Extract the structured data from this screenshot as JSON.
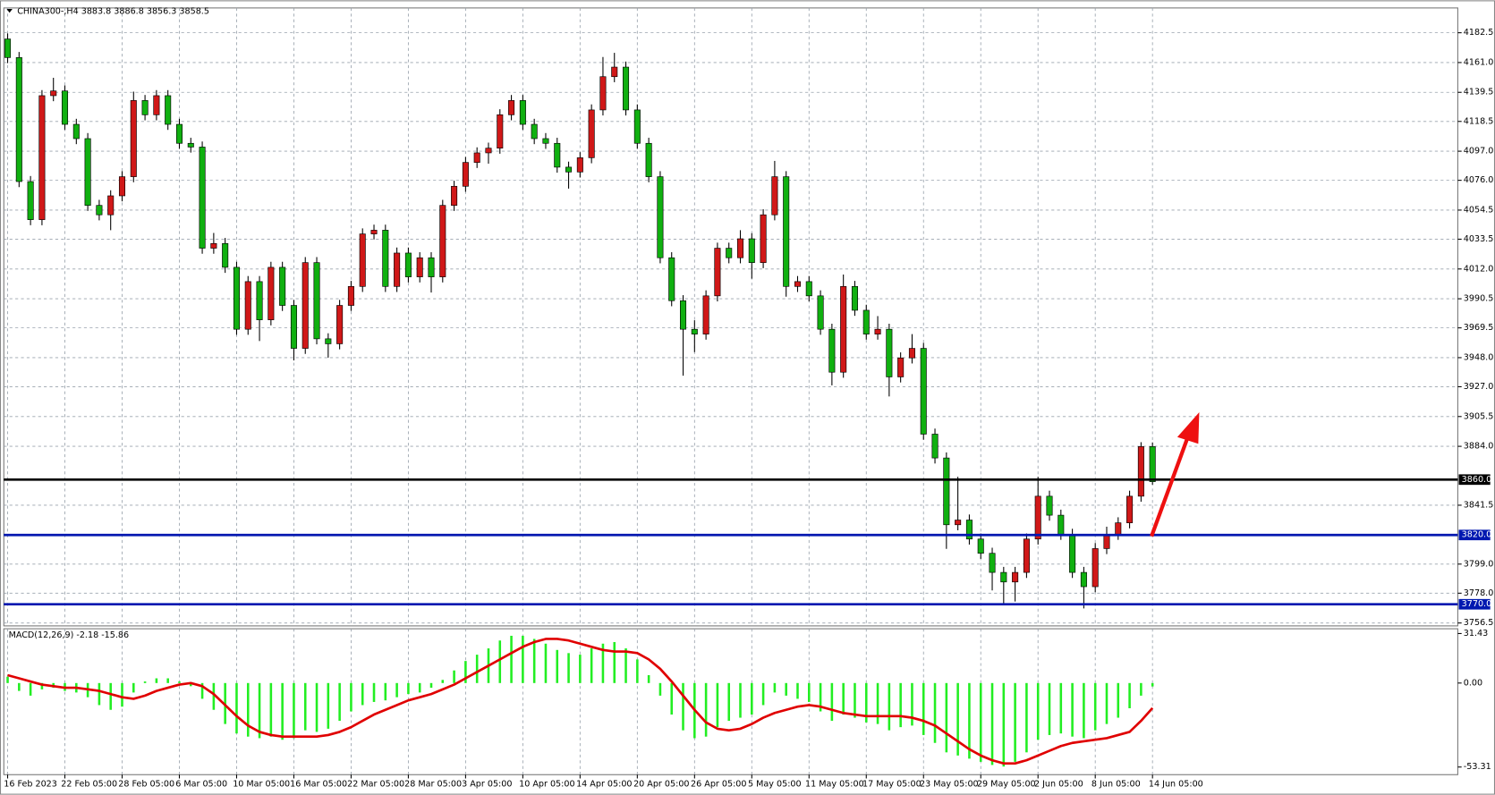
{
  "chart_data": [
    {
      "type": "candlestick",
      "title": "CHINA300-,H4  3883.8 3886.8 3856.3 3858.5",
      "up_color": "#d01818",
      "down_color": "#10b010",
      "grid": true,
      "ylim": [
        3754.4,
        4200.4
      ],
      "yticks": [
        4182.5,
        {
          "value": 4161,
          "label": "4161.0"
        },
        4139.5,
        4118.5,
        {
          "value": 4097,
          "label": "4097.0"
        },
        {
          "value": 4076,
          "label": "4076.0"
        },
        4054.5,
        4033.5,
        {
          "value": 4012,
          "label": "4012.0"
        },
        3990.5,
        3969.5,
        {
          "value": 3948,
          "label": "3948.0"
        },
        {
          "value": 3927,
          "label": "3927.0"
        },
        3905.5,
        {
          "value": 3884,
          "label": "3884.0"
        },
        3841.5,
        {
          "value": 3799,
          "label": "3799.0"
        },
        {
          "value": 3778,
          "label": "3778.0"
        },
        3756.5
      ],
      "levels": [
        {
          "value": 3860,
          "label": "3860.0",
          "color": "#000000"
        },
        {
          "value": 3820,
          "label": "3820.0",
          "color": "#0018b0"
        },
        {
          "value": 3770,
          "label": "3770.0",
          "color": "#0018b0"
        }
      ],
      "categories": [
        "16 Feb 2023",
        null,
        null,
        null,
        null,
        "22 Feb 05:00",
        null,
        null,
        null,
        null,
        "28 Feb 05:00",
        null,
        null,
        null,
        null,
        "6 Mar 05:00",
        null,
        null,
        null,
        null,
        "10 Mar 05:00",
        null,
        null,
        null,
        null,
        "16 Mar 05:00",
        null,
        null,
        null,
        null,
        "22 Mar 05:00",
        null,
        null,
        null,
        null,
        "28 Mar 05:00",
        null,
        null,
        null,
        null,
        "3 Apr 05:00",
        null,
        null,
        null,
        null,
        "10 Apr 05:00",
        null,
        null,
        null,
        null,
        "14 Apr 05:00",
        null,
        null,
        null,
        null,
        "20 Apr 05:00",
        null,
        null,
        null,
        null,
        "26 Apr 05:00",
        null,
        null,
        null,
        null,
        "5 May 05:00",
        null,
        null,
        null,
        null,
        "11 May 05:00",
        null,
        null,
        null,
        null,
        "17 May 05:00",
        null,
        null,
        null,
        null,
        "23 May 05:00",
        null,
        null,
        null,
        null,
        "29 May 05:00",
        null,
        null,
        null,
        null,
        "2 Jun 05:00",
        null,
        null,
        null,
        null,
        "8 Jun 05:00",
        null,
        null,
        null,
        null,
        "14 Jun 05:00"
      ],
      "candles": [
        [
          4178.0,
          4182.0,
          4160.6,
          4164.6
        ],
        [
          4164.6,
          4168.6,
          4071.1,
          4075.1
        ],
        [
          4075.1,
          4079.1,
          4043.6,
          4047.6
        ],
        [
          4047.6,
          4141.1,
          4043.6,
          4137.1
        ],
        [
          4137.1,
          4150.0,
          4133.1,
          4140.5
        ],
        [
          4140.5,
          4144.5,
          4112.4,
          4116.4
        ],
        [
          4116.4,
          4120.4,
          4102.1,
          4106.1
        ],
        [
          4106.1,
          4110.1,
          4053.9,
          4057.9
        ],
        [
          4057.9,
          4061.9,
          4047.1,
          4051.1
        ],
        [
          4051.1,
          4068.8,
          4040.0,
          4064.8
        ],
        [
          4064.8,
          4082.6,
          4060.8,
          4078.6
        ],
        [
          4078.6,
          4140.0,
          4074.6,
          4133.6
        ],
        [
          4133.6,
          4137.6,
          4119.3,
          4123.3
        ],
        [
          4123.3,
          4141.1,
          4119.3,
          4137.1
        ],
        [
          4137.1,
          4141.1,
          4112.4,
          4116.4
        ],
        [
          4116.4,
          4120.4,
          4098.7,
          4102.7
        ],
        [
          4102.7,
          4106.7,
          4096.0,
          4100.0
        ],
        [
          4100.0,
          4104.0,
          4023.0,
          4027.0
        ],
        [
          4027.0,
          4038.0,
          4023.0,
          4030.4
        ],
        [
          4030.4,
          4034.4,
          4009.2,
          4013.2
        ],
        [
          4013.2,
          4017.2,
          3964.5,
          3968.5
        ],
        [
          3968.5,
          4006.9,
          3964.5,
          4002.9
        ],
        [
          4002.9,
          4006.9,
          3960.0,
          3975.3
        ],
        [
          3975.3,
          4017.2,
          3971.3,
          4013.2
        ],
        [
          4013.2,
          4017.2,
          3981.7,
          3985.7
        ],
        [
          3985.7,
          3989.7,
          3946.0,
          3954.7
        ],
        [
          3954.7,
          4020.6,
          3950.7,
          4016.6
        ],
        [
          4016.6,
          4020.6,
          3957.6,
          3961.6
        ],
        [
          3961.6,
          3965.6,
          3948.0,
          3958.0
        ],
        [
          3958.0,
          3989.7,
          3954.0,
          3985.7
        ],
        [
          3985.7,
          4003.4,
          3981.7,
          3999.4
        ],
        [
          3999.4,
          4041.3,
          3995.4,
          4037.3
        ],
        [
          4037.3,
          4044.0,
          4033.3,
          4040.0
        ],
        [
          4040.0,
          4044.0,
          3995.4,
          3999.4
        ],
        [
          3999.4,
          4027.5,
          3995.4,
          4023.5
        ],
        [
          4023.5,
          4027.5,
          4002.3,
          4006.3
        ],
        [
          4006.3,
          4024.1,
          4002.3,
          4020.1
        ],
        [
          4020.1,
          4024.1,
          3995.0,
          4006.3
        ],
        [
          4006.3,
          4061.9,
          4002.3,
          4057.9
        ],
        [
          4057.9,
          4075.7,
          4053.9,
          4071.7
        ],
        [
          4071.7,
          4092.9,
          4067.7,
          4088.9
        ],
        [
          4088.9,
          4099.8,
          4084.9,
          4095.8
        ],
        [
          4095.8,
          4103.2,
          4088.0,
          4099.2
        ],
        [
          4099.2,
          4127.3,
          4095.2,
          4123.3
        ],
        [
          4123.3,
          4137.6,
          4119.3,
          4133.6
        ],
        [
          4133.6,
          4137.6,
          4112.4,
          4116.4
        ],
        [
          4116.4,
          4120.4,
          4102.1,
          4106.1
        ],
        [
          4106.1,
          4110.1,
          4098.7,
          4102.7
        ],
        [
          4102.7,
          4106.7,
          4081.5,
          4085.5
        ],
        [
          4085.5,
          4089.5,
          4070.0,
          4082.0
        ],
        [
          4082.0,
          4096.3,
          4078.0,
          4092.3
        ],
        [
          4092.3,
          4130.8,
          4088.3,
          4126.8
        ],
        [
          4126.8,
          4165.0,
          4122.8,
          4150.8
        ],
        [
          4150.8,
          4168.0,
          4146.8,
          4157.7
        ],
        [
          4157.7,
          4161.7,
          4122.8,
          4126.8
        ],
        [
          4126.8,
          4130.8,
          4098.7,
          4102.7
        ],
        [
          4102.7,
          4106.7,
          4074.6,
          4078.6
        ],
        [
          4078.6,
          4082.6,
          4016.1,
          4020.1
        ],
        [
          4020.1,
          4024.1,
          3985.1,
          3989.1
        ],
        [
          3989.1,
          3993.1,
          3935.0,
          3968.5
        ],
        [
          3968.5,
          3975.0,
          3952.0,
          3965.0
        ],
        [
          3965.0,
          3996.6,
          3961.0,
          3992.6
        ],
        [
          3992.6,
          4031.0,
          3988.6,
          4027.0
        ],
        [
          4027.0,
          4031.0,
          4016.1,
          4020.1
        ],
        [
          4020.1,
          4040.0,
          4016.1,
          4033.8
        ],
        [
          4033.8,
          4037.8,
          4005.0,
          4016.6
        ],
        [
          4016.6,
          4055.1,
          4012.6,
          4051.1
        ],
        [
          4051.1,
          4090.0,
          4047.1,
          4078.6
        ],
        [
          4078.6,
          4082.6,
          3992.0,
          3999.4
        ],
        [
          3999.4,
          4006.9,
          3995.4,
          4002.9
        ],
        [
          4002.9,
          4006.9,
          3988.6,
          3992.6
        ],
        [
          3992.6,
          3996.6,
          3964.5,
          3968.5
        ],
        [
          3968.5,
          3972.5,
          3928.0,
          3937.5
        ],
        [
          3937.5,
          4008.0,
          3933.5,
          3999.4
        ],
        [
          3999.4,
          4003.4,
          3978.2,
          3982.2
        ],
        [
          3982.2,
          3986.2,
          3961.0,
          3965.0
        ],
        [
          3965.0,
          3978.0,
          3961.0,
          3968.5
        ],
        [
          3968.5,
          3972.5,
          3920.0,
          3934.1
        ],
        [
          3934.1,
          3951.8,
          3930.1,
          3947.8
        ],
        [
          3947.8,
          3965.0,
          3943.8,
          3954.7
        ],
        [
          3954.7,
          3958.7,
          3888.8,
          3892.8
        ],
        [
          3892.8,
          3896.8,
          3871.6,
          3875.6
        ],
        [
          3875.6,
          3879.6,
          3810.0,
          3827.4
        ],
        [
          3827.4,
          3862.0,
          3823.4,
          3830.8
        ],
        [
          3830.8,
          3834.8,
          3813.1,
          3817.1
        ],
        [
          3817.1,
          3821.1,
          3802.8,
          3806.8
        ],
        [
          3806.8,
          3810.8,
          3780.0,
          3793.0
        ],
        [
          3793.0,
          3797.0,
          3770.0,
          3786.1
        ],
        [
          3786.1,
          3797.0,
          3772.0,
          3793.0
        ],
        [
          3793.0,
          3821.1,
          3789.0,
          3817.1
        ],
        [
          3817.1,
          3862.0,
          3813.1,
          3848.0
        ],
        [
          3848.0,
          3852.0,
          3830.3,
          3834.3
        ],
        [
          3834.3,
          3838.3,
          3816.5,
          3820.5
        ],
        [
          3820.5,
          3824.5,
          3789.0,
          3793.0
        ],
        [
          3793.0,
          3797.0,
          3767.0,
          3782.7
        ],
        [
          3782.7,
          3814.2,
          3778.7,
          3810.2
        ],
        [
          3810.2,
          3826.0,
          3806.2,
          3820.5
        ],
        [
          3820.5,
          3832.8,
          3816.5,
          3828.8
        ],
        [
          3828.8,
          3852.0,
          3824.8,
          3848.0
        ],
        [
          3848.0,
          3887.0,
          3844.0,
          3883.8
        ],
        [
          3883.8,
          3886.8,
          3856.3,
          3858.5
        ]
      ]
    },
    {
      "type": "macd",
      "title": "MACD(12,26,9) -2.18 -15.86",
      "ylim": [
        -58.15,
        34.46
      ],
      "yticks": [
        31.43,
        {
          "value": 0,
          "label": "0.00"
        },
        -53.31
      ],
      "series": [
        {
          "name": "MACD",
          "color": "#22ee22",
          "values": [
            4,
            -5,
            -8,
            -4,
            -3,
            -5,
            -6,
            -9,
            -14,
            -17,
            -15,
            -6,
            1,
            3,
            3,
            1,
            -2,
            -10,
            -17,
            -26,
            -32,
            -34,
            -35,
            -34,
            -36,
            -35,
            -30,
            -31,
            -29,
            -24,
            -18,
            -14,
            -12,
            -11,
            -9,
            -7,
            -6,
            -3,
            2,
            8,
            14,
            18,
            22,
            27,
            30,
            30,
            28,
            25,
            21,
            19,
            18,
            22,
            25,
            26,
            22,
            15,
            5,
            -8,
            -20,
            -30,
            -35,
            -34,
            -28,
            -24,
            -22,
            -20,
            -14,
            -6,
            -8,
            -10,
            -12,
            -18,
            -24,
            -20,
            -22,
            -25,
            -26,
            -30,
            -28,
            -27,
            -33,
            -38,
            -44,
            -46,
            -48,
            -50,
            -52,
            -53,
            -50,
            -44,
            -36,
            -33,
            -32,
            -34,
            -35,
            -30,
            -26,
            -22,
            -16,
            -8,
            -2.18
          ]
        },
        {
          "name": "Signal",
          "color": "#e00000",
          "values": [
            5,
            3,
            1,
            -1,
            -2,
            -3,
            -3,
            -4,
            -5,
            -7,
            -9,
            -10,
            -8,
            -5,
            -3,
            -1,
            0,
            -2,
            -7,
            -14,
            -21,
            -27,
            -31,
            -33,
            -34,
            -34,
            -34,
            -34,
            -33,
            -31,
            -28,
            -24,
            -20,
            -17,
            -14,
            -11,
            -9,
            -7,
            -4,
            -1,
            3,
            7,
            11,
            15,
            19,
            23,
            26,
            28,
            28,
            27,
            25,
            23,
            21,
            20,
            20,
            19,
            15,
            9,
            1,
            -8,
            -17,
            -25,
            -29,
            -30,
            -29,
            -26,
            -22,
            -19,
            -17,
            -15,
            -14,
            -15,
            -17,
            -19,
            -20,
            -21,
            -21,
            -21,
            -21,
            -22,
            -24,
            -27,
            -32,
            -37,
            -42,
            -46,
            -49,
            -51,
            -51,
            -49,
            -46,
            -43,
            -40,
            -38,
            -37,
            -36,
            -35,
            -33,
            -31,
            -24,
            -15.86
          ]
        }
      ]
    }
  ]
}
